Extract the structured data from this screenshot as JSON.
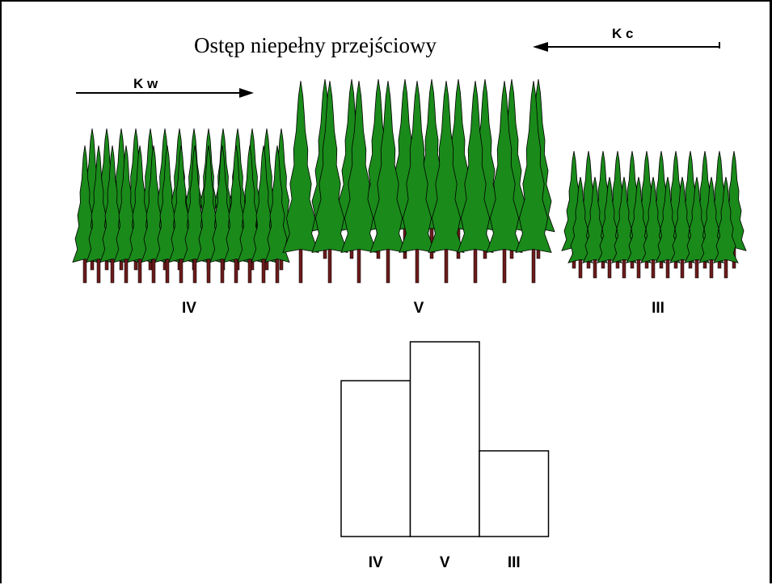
{
  "title": "Ostęp niepełny przejściowy",
  "arrows": {
    "kw": {
      "label": "K w",
      "direction": "right"
    },
    "kc": {
      "label": "K c",
      "direction": "left"
    }
  },
  "forest": {
    "groups": [
      {
        "id": "iv",
        "label": "IV",
        "relative_height": "medium"
      },
      {
        "id": "v",
        "label": "V",
        "relative_height": "tall"
      },
      {
        "id": "iii",
        "label": "III",
        "relative_height": "short"
      }
    ]
  },
  "chart_data": {
    "type": "bar",
    "categories": [
      "IV",
      "V",
      "III"
    ],
    "values": [
      4,
      5,
      2.2
    ],
    "ylim": [
      0,
      5
    ],
    "title": "",
    "xlabel": "",
    "ylabel": ""
  },
  "colors": {
    "tree_fill": "#1a8a1a",
    "tree_outline": "#000000",
    "trunk": "#6b1a1a",
    "bar_fill": "#ffffff",
    "bar_stroke": "#000000"
  }
}
